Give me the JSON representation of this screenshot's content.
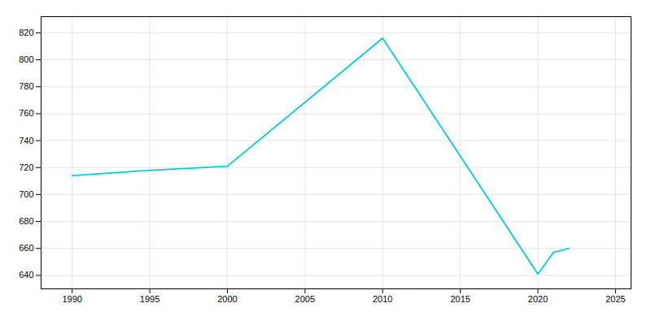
{
  "chart_data": {
    "type": "line",
    "x": [
      1990,
      1995,
      2000,
      2010,
      2020,
      2021,
      2022
    ],
    "values": [
      714,
      718,
      721,
      816,
      641,
      657,
      660
    ],
    "color": "#00CED1",
    "xlim": [
      1988,
      2026
    ],
    "ylim": [
      630,
      832
    ],
    "xticks": [
      1990,
      1995,
      2000,
      2005,
      2010,
      2015,
      2020,
      2025
    ],
    "yticks": [
      640,
      660,
      680,
      700,
      720,
      740,
      760,
      780,
      800,
      820
    ],
    "grid": true
  }
}
